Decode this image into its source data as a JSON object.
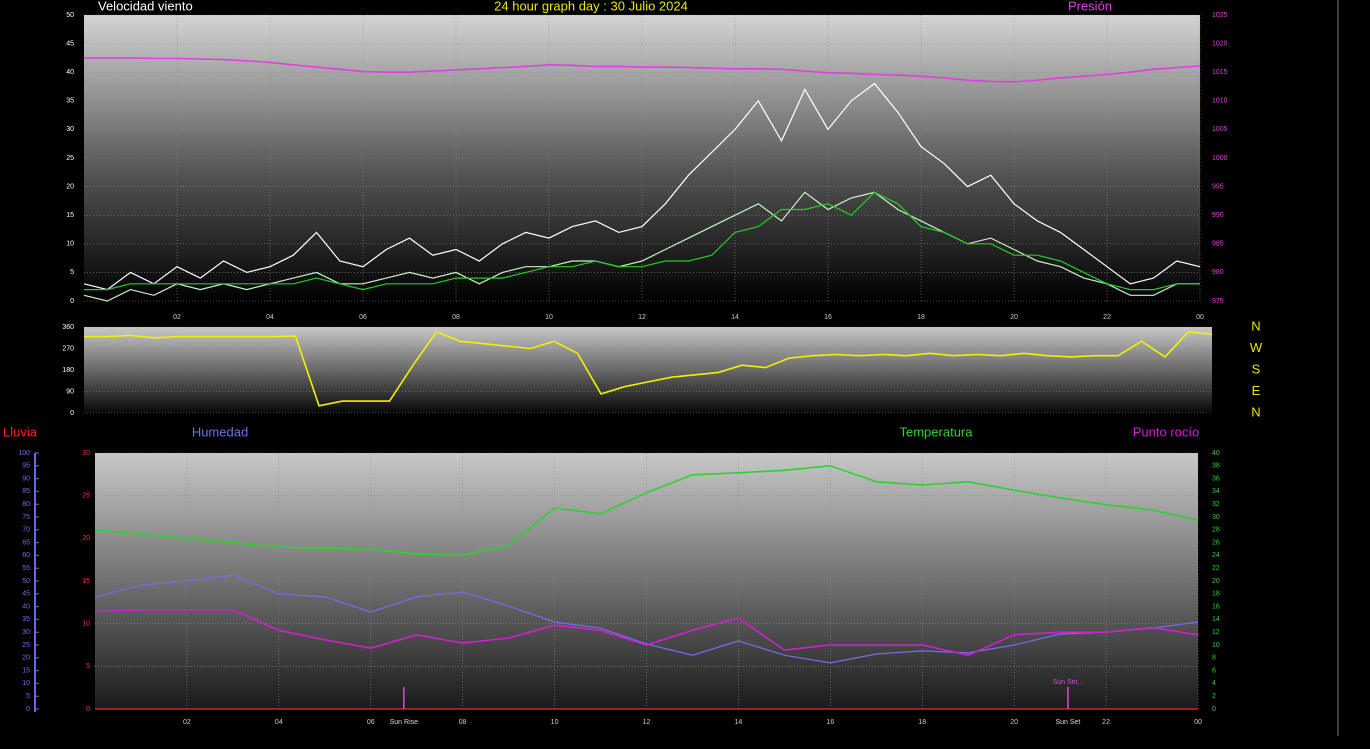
{
  "chart_data": [
    {
      "type": "line",
      "title": "24 hour graph day : 30 Julio 2024",
      "ylabel": "Velocidad viento",
      "y2label": "Presión",
      "xlim": [
        0,
        24
      ],
      "ylim": [
        0,
        50
      ],
      "y2lim": [
        975,
        1025
      ],
      "grid": true,
      "xticks": [
        {
          "value": 2,
          "label": "02"
        },
        {
          "value": 4,
          "label": "04"
        },
        {
          "value": 6,
          "label": "06"
        },
        {
          "value": 8,
          "label": "08"
        },
        10,
        12,
        14,
        16,
        18,
        20,
        22,
        {
          "value": 24,
          "label": "00"
        }
      ],
      "yticks": [
        0,
        5,
        10,
        15,
        20,
        25,
        30,
        35,
        40,
        45,
        50
      ],
      "y2ticks": [
        975,
        980,
        985,
        990,
        995,
        1000,
        1005,
        1010,
        1015,
        1020,
        1025
      ],
      "x": [
        0,
        0.5,
        1,
        1.5,
        2,
        2.5,
        3,
        3.5,
        4,
        4.5,
        5,
        5.5,
        6,
        6.5,
        7,
        7.5,
        8,
        8.5,
        9,
        9.5,
        10,
        10.5,
        11,
        11.5,
        12,
        12.5,
        13,
        13.5,
        14,
        14.5,
        15,
        15.5,
        16,
        16.5,
        17,
        17.5,
        18,
        18.5,
        19,
        19.5,
        20,
        20.5,
        21,
        21.5,
        22,
        22.5,
        23,
        23.5,
        24
      ],
      "series": [
        {
          "color": "#ffffff",
          "values": [
            3,
            2,
            5,
            3,
            6,
            4,
            7,
            5,
            6,
            8,
            12,
            7,
            6,
            9,
            11,
            8,
            9,
            7,
            10,
            12,
            11,
            13,
            14,
            12,
            13,
            17,
            22,
            26,
            30,
            35,
            28,
            37,
            30,
            35,
            38,
            33,
            27,
            24,
            20,
            22,
            17,
            14,
            12,
            9,
            6,
            3,
            4,
            7,
            6
          ]
        },
        {
          "color": "#c8f0c8",
          "values": [
            1,
            0,
            2,
            1,
            3,
            2,
            3,
            2,
            3,
            4,
            5,
            3,
            3,
            4,
            5,
            4,
            5,
            3,
            5,
            6,
            6,
            7,
            7,
            6,
            7,
            9,
            11,
            13,
            15,
            17,
            14,
            19,
            16,
            18,
            19,
            16,
            14,
            12,
            10,
            11,
            9,
            7,
            6,
            4,
            3,
            1,
            1,
            3,
            3
          ]
        },
        {
          "color": "#22cc22",
          "values": [
            2,
            2,
            3,
            3,
            3,
            3,
            3,
            3,
            3,
            3,
            4,
            3,
            2,
            3,
            3,
            3,
            4,
            4,
            4,
            5,
            6,
            6,
            7,
            6,
            6,
            7,
            7,
            8,
            12,
            13,
            16,
            16,
            17,
            15,
            19,
            17,
            13,
            12,
            10,
            10,
            8,
            8,
            7,
            5,
            3,
            2,
            2,
            3,
            3
          ]
        },
        {
          "color": "#e040e0",
          "axis": "y2",
          "values": [
            1017.5,
            1017.5,
            1017.5,
            1017.4,
            1017.4,
            1017.3,
            1017.2,
            1017.0,
            1016.7,
            1016.3,
            1015.9,
            1015.5,
            1015.1,
            1015.0,
            1015.0,
            1015.2,
            1015.4,
            1015.6,
            1015.8,
            1016.0,
            1016.3,
            1016.2,
            1016.0,
            1016.0,
            1015.9,
            1015.9,
            1015.8,
            1015.7,
            1015.6,
            1015.6,
            1015.5,
            1015.2,
            1014.9,
            1014.8,
            1014.6,
            1014.5,
            1014.3,
            1014.0,
            1013.6,
            1013.4,
            1013.3,
            1013.6,
            1014.0,
            1014.3,
            1014.6,
            1015.0,
            1015.5,
            1015.8,
            1016.1
          ]
        }
      ]
    },
    {
      "type": "line",
      "xlim": [
        0,
        24
      ],
      "ylim": [
        0,
        360
      ],
      "y2lim": [
        0,
        360
      ],
      "grid": true,
      "yticks": [
        0,
        90,
        180,
        270,
        360
      ],
      "y2ticks": [
        {
          "value": 360,
          "label": "N"
        },
        {
          "value": 270,
          "label": "W"
        },
        {
          "value": 180,
          "label": "S"
        },
        {
          "value": 90,
          "label": "E"
        },
        {
          "value": 0,
          "label": "N"
        }
      ],
      "x": [
        0,
        0.5,
        1,
        1.5,
        2,
        2.5,
        3,
        3.5,
        4,
        4.5,
        5,
        5.5,
        6,
        6.5,
        7,
        7.5,
        8,
        8.5,
        9,
        9.5,
        10,
        10.5,
        11,
        11.5,
        12,
        12.5,
        13,
        13.5,
        14,
        14.5,
        15,
        15.5,
        16,
        16.5,
        17,
        17.5,
        18,
        18.5,
        19,
        19.5,
        20,
        20.5,
        21,
        21.5,
        22,
        22.5,
        23,
        23.5,
        24
      ],
      "series": [
        {
          "color": "#f0f000",
          "values": [
            320,
            320,
            325,
            315,
            320,
            320,
            320,
            320,
            320,
            322,
            30,
            50,
            50,
            50,
            200,
            340,
            300,
            290,
            280,
            270,
            300,
            250,
            80,
            110,
            130,
            150,
            160,
            170,
            200,
            190,
            230,
            240,
            245,
            240,
            245,
            240,
            250,
            240,
            245,
            240,
            250,
            240,
            235,
            240,
            240,
            300,
            235,
            340,
            330
          ]
        }
      ]
    },
    {
      "type": "line",
      "xlim": [
        0,
        24
      ],
      "ylim": [
        0,
        30
      ],
      "y2lim": [
        0,
        40
      ],
      "y3lim": [
        0,
        100
      ],
      "grid": true,
      "xticks": [
        {
          "value": 2,
          "label": "02"
        },
        {
          "value": 4,
          "label": "04"
        },
        {
          "value": 6,
          "label": "06"
        },
        {
          "value": 8,
          "label": "08"
        },
        10,
        12,
        14,
        16,
        18,
        20,
        22,
        {
          "value": 24,
          "label": "00"
        }
      ],
      "yticks": [
        0,
        5,
        10,
        15,
        20,
        25,
        30
      ],
      "y2ticks": [
        0,
        2,
        4,
        6,
        8,
        10,
        12,
        14,
        16,
        18,
        20,
        22,
        24,
        26,
        28,
        30,
        32,
        34,
        36,
        38,
        40
      ],
      "y3ticks": [
        0,
        5,
        10,
        15,
        20,
        25,
        30,
        35,
        40,
        45,
        50,
        55,
        60,
        65,
        70,
        75,
        80,
        85,
        90,
        95,
        100
      ],
      "x": [
        0,
        1,
        2,
        3,
        4,
        5,
        6,
        7,
        8,
        9,
        10,
        11,
        12,
        13,
        14,
        15,
        16,
        17,
        18,
        19,
        20,
        21,
        22,
        23,
        24
      ],
      "series": [
        {
          "name": "Lluvia",
          "color": "#ff2020",
          "values": [
            0,
            0,
            0,
            0,
            0,
            0,
            0,
            0,
            0,
            0,
            0,
            0,
            0,
            0,
            0,
            0,
            0,
            0,
            0,
            0,
            0,
            0,
            0,
            0,
            0
          ]
        },
        {
          "name": "Humedad",
          "color": "#7070e8",
          "axis": "y3",
          "values": [
            43.8,
            48.4,
            50,
            52.3,
            45,
            43.8,
            37.9,
            43.8,
            45.7,
            40.2,
            34,
            31.6,
            25.4,
            21,
            26.6,
            21,
            18,
            21.5,
            22.7,
            21.9,
            25,
            29.3,
            30,
            31.6,
            34
          ]
        },
        {
          "name": "Temperatura",
          "color": "#30d030",
          "axis": "y2",
          "values": [
            28,
            27.3,
            26.7,
            26,
            25.3,
            25.1,
            25,
            24.2,
            24,
            25.6,
            31.4,
            30.5,
            33.8,
            36.6,
            36.9,
            37.3,
            38,
            35.5,
            35,
            35.5,
            34.2,
            33,
            31.9,
            31.1,
            29.5
          ]
        },
        {
          "name": "Punto rocío",
          "color": "#d020d0",
          "axis": "y2",
          "values": [
            15.2,
            15.5,
            15.5,
            15.5,
            12.3,
            10.8,
            9.5,
            11.6,
            10.3,
            11.1,
            13.1,
            12.3,
            10,
            12.3,
            14.2,
            9.2,
            10,
            10,
            10,
            8.4,
            11.6,
            12,
            12,
            12.7,
            11.6
          ]
        }
      ],
      "annotations": [
        {
          "x": 6.72,
          "label": "Sun Rise"
        },
        {
          "x": 21.17,
          "label": "Sun Set",
          "upper_label": "Sun Set..."
        }
      ]
    }
  ]
}
